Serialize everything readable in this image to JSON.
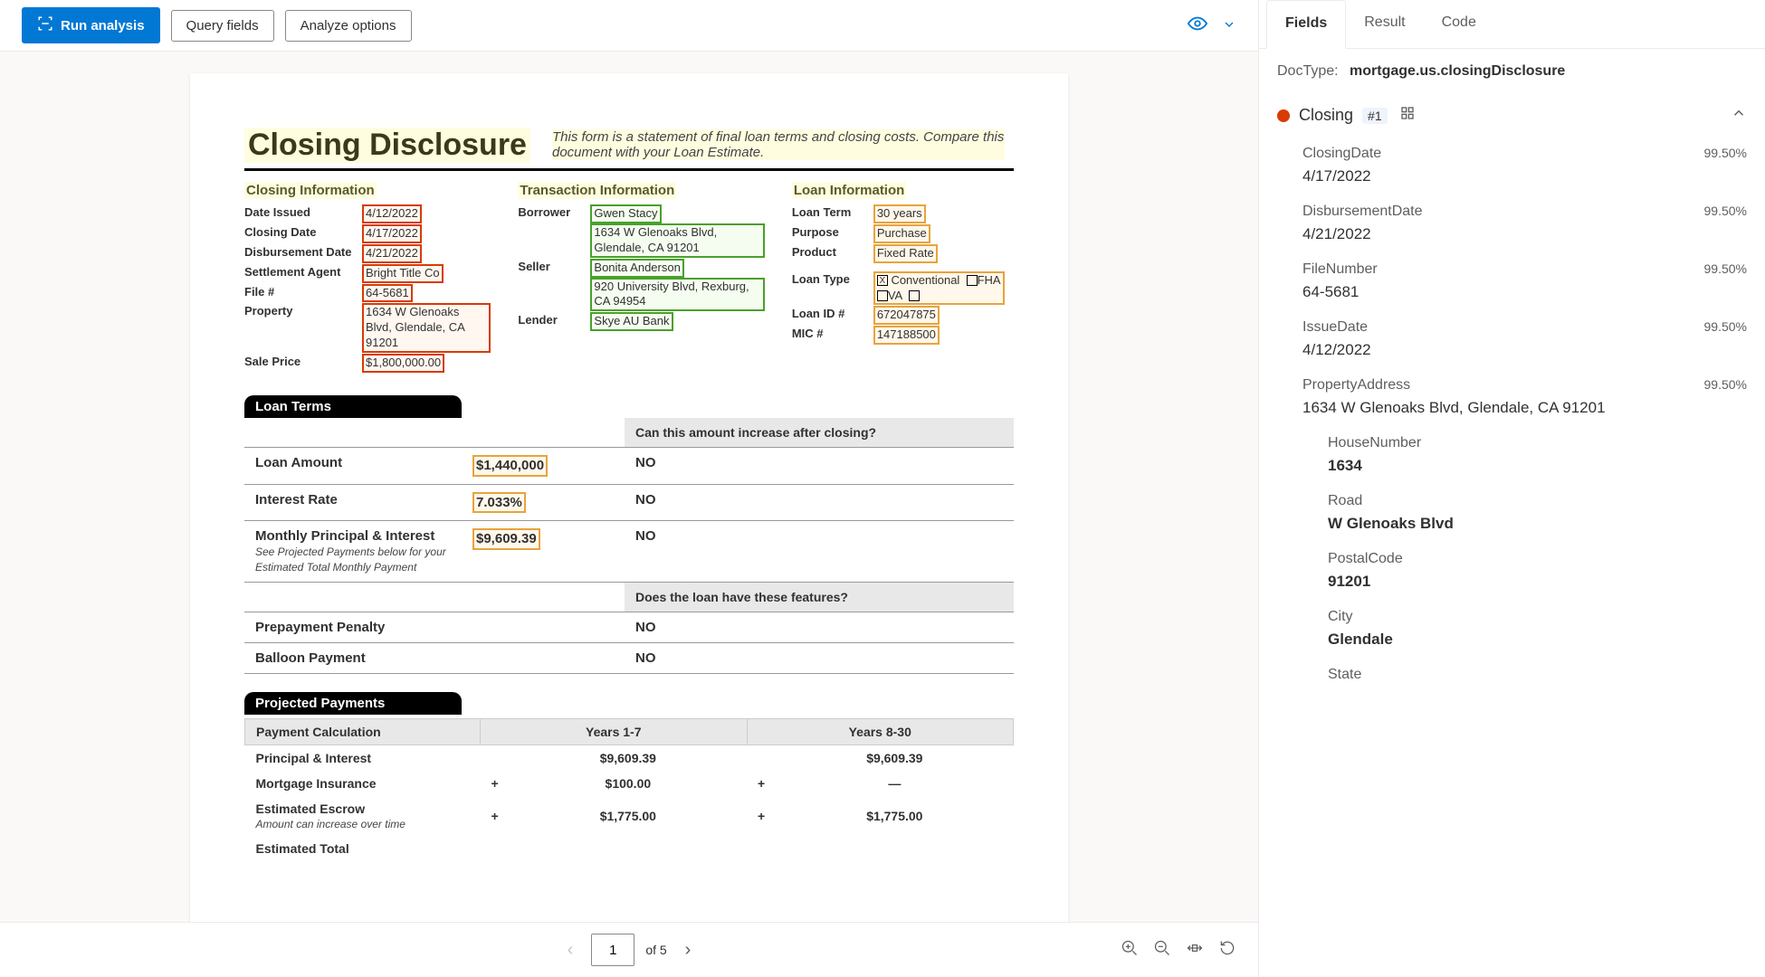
{
  "toolbar": {
    "run_analysis": "Run analysis",
    "query_fields": "Query fields",
    "analyze_options": "Analyze options"
  },
  "doc": {
    "title": "Closing Disclosure",
    "subtitle": "This form is a statement of final loan terms and closing costs. Compare this document with your Loan Estimate.",
    "closing_info": {
      "heading": "Closing  Information",
      "date_issued_label": "Date Issued",
      "date_issued": "4/12/2022",
      "closing_date_label": "Closing Date",
      "closing_date": "4/17/2022",
      "disbursement_date_label": "Disbursement Date",
      "disbursement_date": "4/21/2022",
      "settlement_agent_label": "Settlement Agent",
      "settlement_agent": "Bright  Title Co",
      "file_no_label": "File #",
      "file_no": "64-5681",
      "property_label": "Property",
      "property": "1634 W Glenoaks Blvd, Glendale, CA 91201",
      "sale_price_label": "Sale Price",
      "sale_price": "$1,800,000.00"
    },
    "transaction_info": {
      "heading": "Transaction  Information",
      "borrower_label": "Borrower",
      "borrower_name": "Gwen Stacy",
      "borrower_addr": "1634 W Glenoaks Blvd, Glendale, CA 91201",
      "seller_label": "Seller",
      "seller_name": "Bonita Anderson",
      "seller_addr": "920 University Blvd, Rexburg, CA 94954",
      "lender_label": "Lender",
      "lender_name": "Skye AU Bank"
    },
    "loan_info": {
      "heading": "Loan  Information",
      "loan_term_label": "Loan Term",
      "loan_term": "30 years",
      "purpose_label": "Purpose",
      "purpose": "Purchase",
      "product_label": "Product",
      "product": "Fixed Rate",
      "loan_type_label": "Loan Type",
      "type_conventional": "Conventional",
      "type_fha": "FHA",
      "type_va": "VA",
      "loan_id_label": "Loan ID #",
      "loan_id": "672047875",
      "mic_label": "MIC #",
      "mic": "147188500"
    },
    "loan_terms": {
      "heading": "Loan Terms",
      "increase_q": "Can this amount increase after closing?",
      "loan_amount_label": "Loan Amount",
      "loan_amount": "$1,440,000",
      "loan_amount_ans": "NO",
      "interest_rate_label": "Interest Rate",
      "interest_rate": "7.033%",
      "interest_rate_ans": "NO",
      "monthly_pi_label": "Monthly Principal & Interest",
      "monthly_pi": "$9,609.39",
      "monthly_pi_ans": "NO",
      "monthly_pi_note": "See Projected Payments below for your Estimated Total Monthly Payment",
      "features_q": "Does the loan have these features?",
      "prepayment_label": "Prepayment Penalty",
      "prepayment_ans": "NO",
      "balloon_label": "Balloon Payment",
      "balloon_ans": "NO"
    },
    "projected": {
      "heading": "Projected Payments",
      "calc_label": "Payment Calculation",
      "years17": "Years 1-7",
      "years830": "Years 8-30",
      "pi_label": "Principal & Interest",
      "pi_17": "$9,609.39",
      "pi_830": "$9,609.39",
      "mi_label": "Mortgage Insurance",
      "mi_17": "$100.00",
      "mi_830": "—",
      "escrow_label": "Estimated Escrow",
      "escrow_note": "Amount can increase over time",
      "escrow_17": "$1,775.00",
      "escrow_830": "$1,775.00",
      "est_total_label": "Estimated Total"
    }
  },
  "pagenav": {
    "current": "1",
    "total": "of 5"
  },
  "rightPanel": {
    "tabs": {
      "fields": "Fields",
      "result": "Result",
      "code": "Code"
    },
    "doctype_label": "DocType:",
    "doctype_value": "mortgage.us.closingDisclosure",
    "group": {
      "name": "Closing",
      "badge": "#1"
    },
    "fields": [
      {
        "name": "ClosingDate",
        "conf": "99.50%",
        "value": "4/17/2022"
      },
      {
        "name": "DisbursementDate",
        "conf": "99.50%",
        "value": "4/21/2022"
      },
      {
        "name": "FileNumber",
        "conf": "99.50%",
        "value": "64-5681"
      },
      {
        "name": "IssueDate",
        "conf": "99.50%",
        "value": "4/12/2022"
      },
      {
        "name": "PropertyAddress",
        "conf": "99.50%",
        "value": "1634 W Glenoaks Blvd, Glendale, CA 91201"
      }
    ],
    "subfields": [
      {
        "name": "HouseNumber",
        "value": "1634"
      },
      {
        "name": "Road",
        "value": "W Glenoaks Blvd"
      },
      {
        "name": "PostalCode",
        "value": "91201"
      },
      {
        "name": "City",
        "value": "Glendale"
      },
      {
        "name": "State",
        "value": ""
      }
    ]
  }
}
